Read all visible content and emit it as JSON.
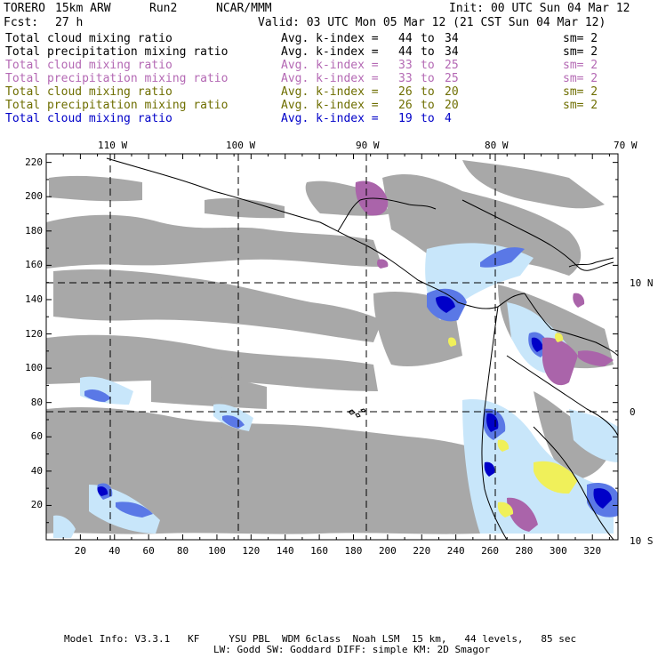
{
  "header": {
    "model": "TORERO",
    "resolution": "15km ARW",
    "run": "Run2",
    "org": "NCAR/MMM",
    "init": "Init: 00 UTC Sun 04 Mar 12",
    "fcst": "Fcst:",
    "fcst_hours": "27 h",
    "valid": "Valid: 03 UTC Mon 05 Mar 12 (21 CST Sun 04 Mar 12)"
  },
  "legend": [
    {
      "field": "Total cloud mixing ratio",
      "stat": "Avg. k-index =",
      "from": "44",
      "to_word": "to",
      "to": "34",
      "sm": "sm= 2",
      "color": "#000000"
    },
    {
      "field": "Total precipitation mixing ratio",
      "stat": "Avg. k-index =",
      "from": "44",
      "to_word": "to",
      "to": "34",
      "sm": "sm= 2",
      "color": "#000000"
    },
    {
      "field": "Total cloud mixing ratio",
      "stat": "Avg. k-index =",
      "from": "33",
      "to_word": "to",
      "to": "25",
      "sm": "sm= 2",
      "color": "#b469b4"
    },
    {
      "field": "Total precipitation mixing ratio",
      "stat": "Avg. k-index =",
      "from": "33",
      "to_word": "to",
      "to": "25",
      "sm": "sm= 2",
      "color": "#b469b4"
    },
    {
      "field": "Total cloud mixing ratio",
      "stat": "Avg. k-index =",
      "from": "26",
      "to_word": "to",
      "to": "20",
      "sm": "sm= 2",
      "color": "#6e6e00"
    },
    {
      "field": "Total precipitation mixing ratio",
      "stat": "Avg. k-index =",
      "from": "26",
      "to_word": "to",
      "to": "20",
      "sm": "sm= 2",
      "color": "#6e6e00"
    },
    {
      "field": "Total cloud mixing ratio",
      "stat": "Avg. k-index =",
      "from": "19",
      "to_word": "to",
      "to": "4",
      "sm": "",
      "color": "#0000c8"
    }
  ],
  "map": {
    "lon_labels": [
      "110 W",
      "100 W",
      "90 W",
      "80 W",
      "70 W"
    ],
    "lat_labels": [
      "10 N",
      "0",
      "10 S"
    ],
    "x_ticks": [
      "20",
      "40",
      "60",
      "80",
      "100",
      "120",
      "140",
      "160",
      "180",
      "200",
      "220",
      "240",
      "260",
      "280",
      "300",
      "320"
    ],
    "y_ticks": [
      "20",
      "40",
      "60",
      "80",
      "100",
      "120",
      "140",
      "160",
      "180",
      "200",
      "220"
    ],
    "colors": {
      "gray": "#a8a8a8",
      "light_blue": "#c8e6fa",
      "mid_blue": "#5a78e6",
      "dark_blue": "#0000c8",
      "purple": "#aa64aa",
      "yellow": "#f0f05a",
      "coast": "#000000"
    }
  },
  "footer": {
    "line1": "Model Info: V3.3.1   KF     YSU PBL  WDM 6class  Noah LSM  15 km,   44 levels,   85 sec",
    "line2": "LW: Godd SW: Goddard DIFF: simple KM: 2D Smagor"
  }
}
